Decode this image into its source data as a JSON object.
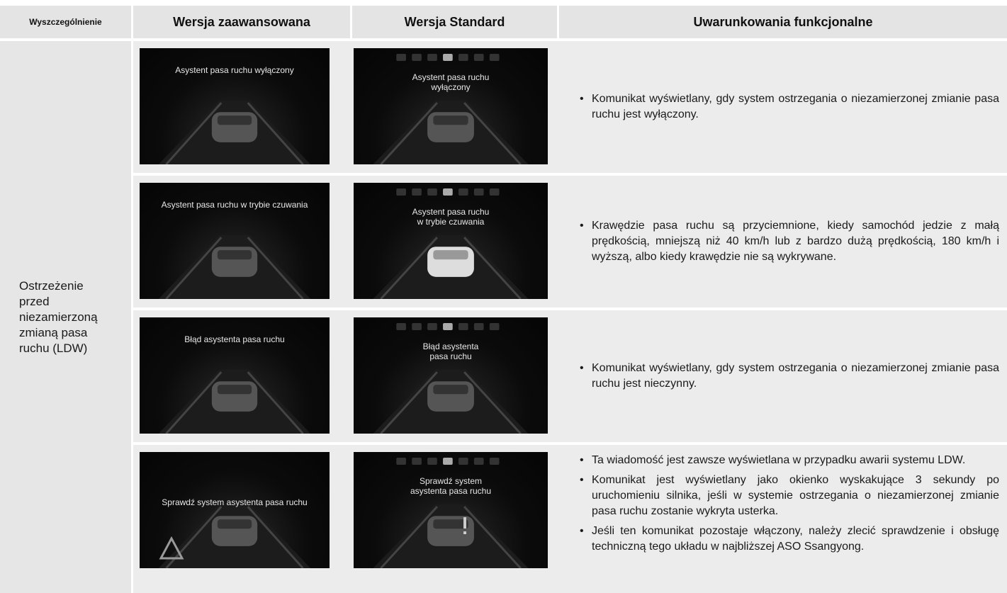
{
  "header": {
    "columns": [
      "Wyszczególnienie",
      "Wersja zaawansowana",
      "Wersja Standard",
      "Uwarunkowania funkcjonalne"
    ]
  },
  "row_label": "Ostrzeżenie przed niezamierzoną zmianą pasa ruchu (LDW)",
  "rows": [
    {
      "advanced": "Asystent pasa ruchu wyłączony",
      "standard": [
        "Asystent pasa ruchu",
        "wyłączony"
      ],
      "notes": [
        "Komunikat wyświetlany, gdy system ostrzegania o niezamierzonej zmianie pasa ruchu jest wyłączony."
      ]
    },
    {
      "advanced": "Asystent pasa ruchu w trybie czuwania",
      "standard": [
        "Asystent pasa ruchu",
        "w trybie czuwania"
      ],
      "notes": [
        "Krawędzie pasa ruchu są przyciemnione, kiedy samochód jedzie z małą prędkością, mniejszą niż 40 km/h lub z bardzo dużą prędkością, 180 km/h i wyższą, albo kiedy krawędzie nie są wykrywane."
      ]
    },
    {
      "advanced": "Błąd asystenta pasa ruchu",
      "standard": [
        "Błąd asystenta",
        "pasa ruchu"
      ],
      "notes": [
        "Komunikat wyświetlany, gdy system ostrzegania o niezamierzonej zmianie pasa ruchu jest nieczynny."
      ]
    },
    {
      "advanced": "Sprawdź system asystenta pasa ruchu",
      "standard": [
        "Sprawdź system",
        "asystenta pasa ruchu"
      ],
      "notes": [
        "Ta wiadomość jest zawsze wyświetlana w przypadku awarii systemu LDW.",
        "Komunikat jest wyświetlany jako okienko wyskakujące 3 sekundy po uruchomieniu silnika, jeśli w systemie ostrzegania o niezamierzonej zmianie pasa ruchu zostanie wykryta usterka.",
        "Jeśli ten komunikat pozostaje włączony, należy zlecić sprawdzenie i obsługę techniczną tego układu w najbliższej ASO Ssangyong."
      ]
    }
  ]
}
